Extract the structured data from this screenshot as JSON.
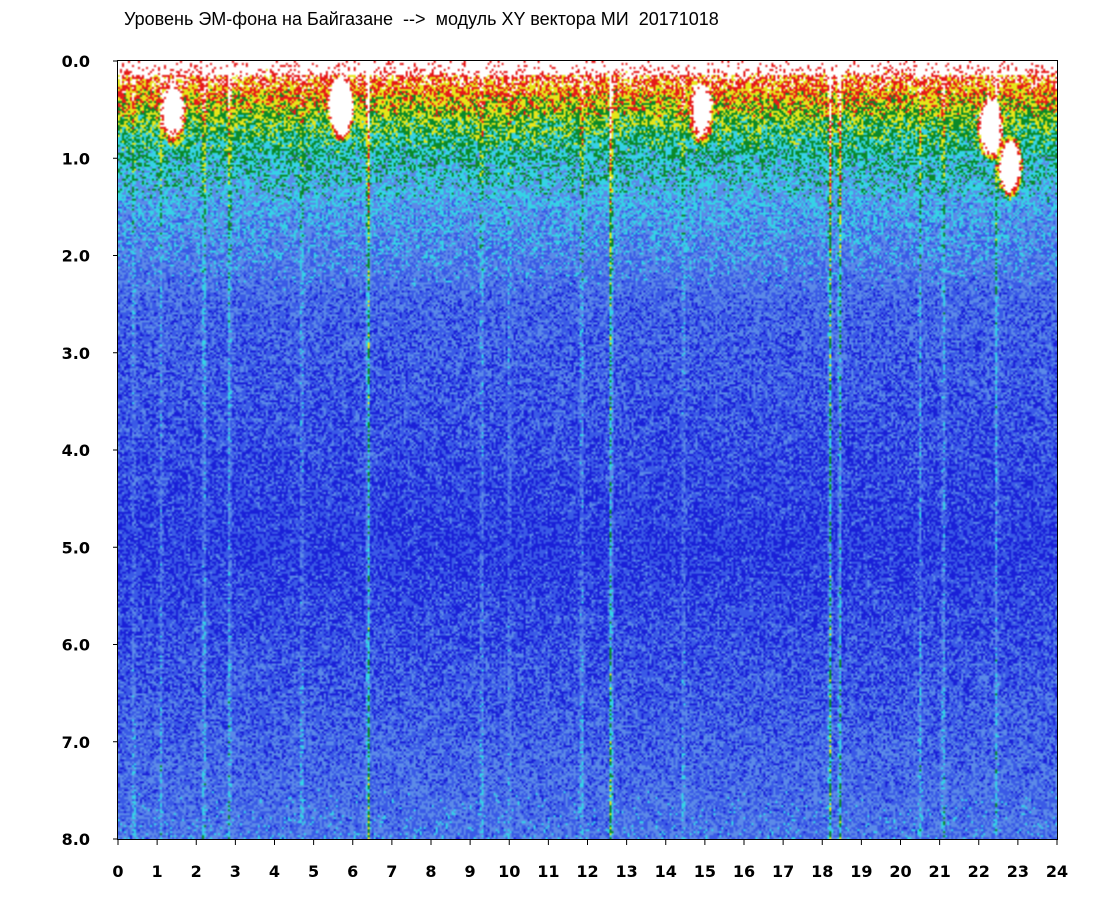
{
  "chart_data": {
    "type": "heatmap",
    "title": "Уровень ЭМ-фона на Байгазане  -->  модуль XY вектора МИ  20171018",
    "xlabel": "",
    "ylabel": "",
    "xlim": [
      0,
      24
    ],
    "ylim": [
      0,
      8
    ],
    "y_inverted": true,
    "x_ticks": [
      "0",
      "1",
      "2",
      "3",
      "4",
      "5",
      "6",
      "7",
      "8",
      "9",
      "10",
      "11",
      "12",
      "13",
      "14",
      "15",
      "16",
      "17",
      "18",
      "19",
      "20",
      "21",
      "22",
      "23",
      "24"
    ],
    "y_ticks": [
      "0.0",
      "1.0",
      "2.0",
      "3.0",
      "4.0",
      "5.0",
      "6.0",
      "7.0",
      "8.0"
    ],
    "colorscale": [
      "#1a20d8",
      "#3a5ae6",
      "#5b8ae8",
      "#35d2e6",
      "#0a8a2a",
      "#e6e619",
      "#e61919",
      "#ffffff"
    ],
    "intensity_profile": [
      {
        "y": 0.0,
        "level": 0.92
      },
      {
        "y": 0.4,
        "level": 0.7
      },
      {
        "y": 0.8,
        "level": 0.52
      },
      {
        "y": 1.5,
        "level": 0.35
      },
      {
        "y": 2.5,
        "level": 0.22
      },
      {
        "y": 5.0,
        "level": 0.12
      },
      {
        "y": 8.0,
        "level": 0.26
      }
    ],
    "vertical_streaks": [
      {
        "x": 0.4,
        "strength": 0.3
      },
      {
        "x": 1.1,
        "strength": 0.35
      },
      {
        "x": 2.2,
        "strength": 0.55
      },
      {
        "x": 2.85,
        "strength": 0.6
      },
      {
        "x": 4.7,
        "strength": 0.4
      },
      {
        "x": 6.4,
        "strength": 0.95
      },
      {
        "x": 9.3,
        "strength": 0.4
      },
      {
        "x": 10.0,
        "strength": 0.3
      },
      {
        "x": 11.85,
        "strength": 0.5
      },
      {
        "x": 12.6,
        "strength": 1.0
      },
      {
        "x": 14.45,
        "strength": 0.35
      },
      {
        "x": 18.2,
        "strength": 0.9
      },
      {
        "x": 18.45,
        "strength": 0.75
      },
      {
        "x": 20.5,
        "strength": 0.4
      },
      {
        "x": 21.1,
        "strength": 0.5
      },
      {
        "x": 22.45,
        "strength": 0.55
      }
    ],
    "hot_blobs": [
      {
        "x": 5.7,
        "y": 0.5,
        "strength": 1.0
      },
      {
        "x": 1.4,
        "y": 0.55,
        "strength": 0.6
      },
      {
        "x": 14.9,
        "y": 0.55,
        "strength": 0.6
      },
      {
        "x": 22.8,
        "y": 1.1,
        "strength": 1.0
      },
      {
        "x": 22.3,
        "y": 0.7,
        "strength": 0.9
      }
    ],
    "grid": false,
    "legend": "none"
  }
}
